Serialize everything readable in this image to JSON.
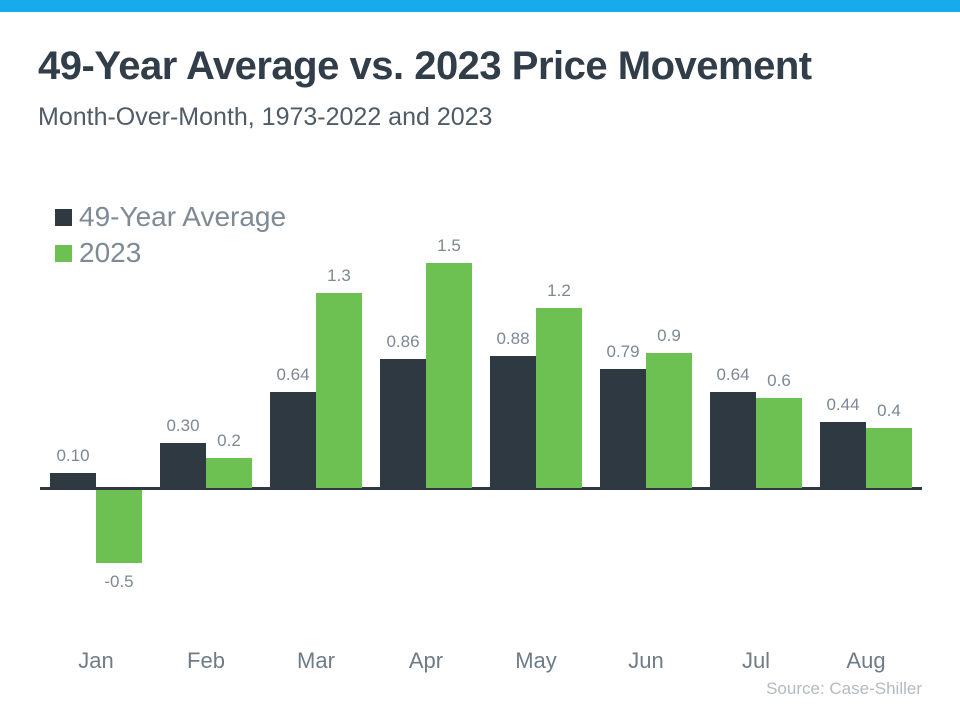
{
  "page": {
    "top_bar_color": "#18abec",
    "background_color": "#ffffff"
  },
  "header": {
    "title": "49-Year Average vs. 2023 Price Movement",
    "subtitle": "Month-Over-Month, 1973-2022 and 2023"
  },
  "legend": {
    "items": [
      {
        "label": "49-Year Average",
        "color": "#2e3942"
      },
      {
        "label": "2023",
        "color": "#6dc153"
      }
    ]
  },
  "chart_data": {
    "type": "bar",
    "title": "49-Year Average vs. 2023 Price Movement",
    "subtitle": "Month-Over-Month, 1973-2022 and 2023",
    "categories": [
      "Jan",
      "Feb",
      "Mar",
      "Apr",
      "May",
      "Jun",
      "Jul",
      "Aug"
    ],
    "series": [
      {
        "name": "49-Year Average",
        "color": "#2e3942",
        "values": [
          0.1,
          0.3,
          0.64,
          0.86,
          0.88,
          0.79,
          0.64,
          0.44
        ],
        "value_labels": [
          "0.10",
          "0.30",
          "0.64",
          "0.86",
          "0.88",
          "0.79",
          "0.64",
          "0.44"
        ]
      },
      {
        "name": "2023",
        "color": "#6dc153",
        "values": [
          -0.5,
          0.2,
          1.3,
          1.5,
          1.2,
          0.9,
          0.6,
          0.4
        ],
        "value_labels": [
          "-0.5",
          "0.2",
          "1.3",
          "1.5",
          "1.2",
          "0.9",
          "0.6",
          "0.4"
        ]
      }
    ],
    "xlabel": "",
    "ylabel": "",
    "ylim": [
      -0.75,
      1.75
    ],
    "grid": false,
    "axis_color": "#2e3942",
    "value_labels_shown": true,
    "legend_position": "top-left"
  },
  "footer": {
    "source": "Source: Case-Shiller"
  }
}
